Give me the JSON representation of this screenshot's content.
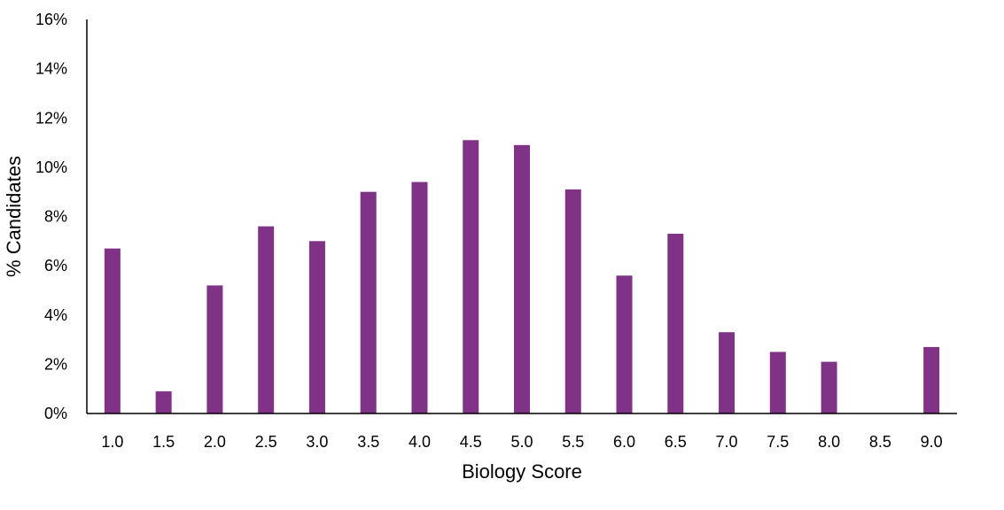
{
  "chart_data": {
    "type": "bar",
    "title": "",
    "xlabel": "Biology Score",
    "ylabel": "% Candidates",
    "categories": [
      "1.0",
      "1.5",
      "2.0",
      "2.5",
      "3.0",
      "3.5",
      "4.0",
      "4.5",
      "5.0",
      "5.5",
      "6.0",
      "6.5",
      "7.0",
      "7.5",
      "8.0",
      "8.5",
      "9.0"
    ],
    "values": [
      6.7,
      0.9,
      5.2,
      7.6,
      7.0,
      9.0,
      9.4,
      11.1,
      10.9,
      9.1,
      5.6,
      7.3,
      3.3,
      2.5,
      2.1,
      0,
      2.7
    ],
    "ylim": [
      0,
      16
    ],
    "yticks": [
      "0%",
      "2%",
      "4%",
      "6%",
      "8%",
      "10%",
      "12%",
      "14%",
      "16%"
    ],
    "grid": false,
    "legend": "none",
    "bar_color": "#7f3286",
    "axis_color": "#000000"
  }
}
